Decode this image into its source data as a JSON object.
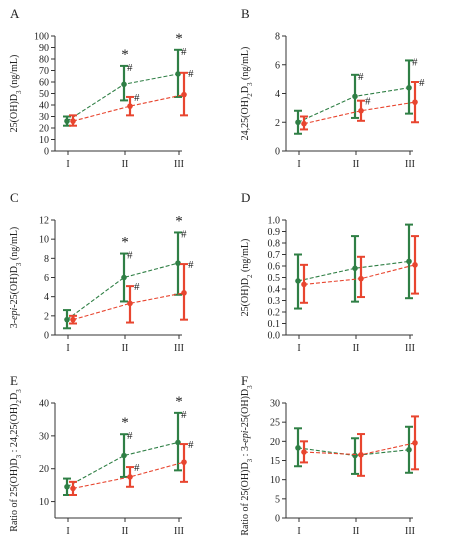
{
  "colors": {
    "green": "#2f7f45",
    "red": "#e8452f"
  },
  "chart_data": [
    {
      "type": "line",
      "panel_label": "A",
      "ylabel": "25(OH)D3 (ng/mL)",
      "ylabel_parts": [
        [
          "25(OH)D",
          "normal"
        ],
        [
          "3",
          "sub"
        ],
        [
          " (ng/mL)",
          "normal"
        ]
      ],
      "categories": [
        "I",
        "II",
        "III"
      ],
      "ylim": [
        0,
        100
      ],
      "yticks": [
        0,
        10,
        20,
        30,
        40,
        50,
        60,
        70,
        80,
        90,
        100
      ],
      "series": [
        {
          "color": "green",
          "values": [
            26,
            58,
            67
          ],
          "err_low": [
            22,
            44,
            47
          ],
          "err_high": [
            30,
            74,
            88
          ]
        },
        {
          "color": "red",
          "values": [
            26,
            39,
            49
          ],
          "err_low": [
            22,
            31,
            31
          ],
          "err_high": [
            31,
            47,
            68
          ]
        }
      ],
      "annotations": [
        {
          "x": 1,
          "y": 74,
          "star": "*",
          "hash_green": "#",
          "hash_red": "#"
        },
        {
          "x": 2,
          "y": 88,
          "star": "*",
          "hash_green": "#",
          "hash_red": "#"
        }
      ]
    },
    {
      "type": "line",
      "panel_label": "B",
      "ylabel": "24,25(OH)2D3 (ng/mL)",
      "ylabel_parts": [
        [
          "24,25(OH)",
          "normal"
        ],
        [
          "2",
          "sub"
        ],
        [
          "D",
          "normal"
        ],
        [
          "3",
          "sub"
        ],
        [
          " (ng/mL)",
          "normal"
        ]
      ],
      "categories": [
        "I",
        "II",
        "III"
      ],
      "ylim": [
        0,
        8
      ],
      "yticks": [
        0,
        2,
        4,
        6,
        8
      ],
      "series": [
        {
          "color": "green",
          "values": [
            2.0,
            3.8,
            4.4
          ],
          "err_low": [
            1.2,
            2.3,
            2.6
          ],
          "err_high": [
            2.8,
            5.3,
            6.3
          ]
        },
        {
          "color": "red",
          "values": [
            1.9,
            2.8,
            3.4
          ],
          "err_low": [
            1.5,
            2.1,
            2.0
          ],
          "err_high": [
            2.4,
            3.5,
            4.8
          ]
        }
      ],
      "annotations": [
        {
          "x": 1,
          "y": 5.3,
          "star": "",
          "hash_green": "#",
          "hash_red": "#"
        },
        {
          "x": 2,
          "y": 6.3,
          "star": "",
          "hash_green": "#",
          "hash_red": "#"
        }
      ]
    },
    {
      "type": "line",
      "panel_label": "C",
      "ylabel": "3-epi-25(OH)D3 (ng/mL)",
      "ylabel_parts": [
        [
          "3-",
          "normal"
        ],
        [
          "epi",
          "italic"
        ],
        [
          "-25(OH)D",
          "normal"
        ],
        [
          "3",
          "sub"
        ],
        [
          " (ng/mL)",
          "normal"
        ]
      ],
      "categories": [
        "I",
        "II",
        "III"
      ],
      "ylim": [
        0,
        12
      ],
      "yticks": [
        0,
        2,
        4,
        6,
        8,
        10,
        12
      ],
      "series": [
        {
          "color": "green",
          "values": [
            1.6,
            6.0,
            7.5
          ],
          "err_low": [
            0.7,
            3.5,
            4.2
          ],
          "err_high": [
            2.6,
            8.5,
            10.7
          ]
        },
        {
          "color": "red",
          "values": [
            1.6,
            3.3,
            4.4
          ],
          "err_low": [
            1.2,
            1.3,
            1.6
          ],
          "err_high": [
            2.0,
            5.1,
            7.4
          ]
        }
      ],
      "annotations": [
        {
          "x": 1,
          "y": 8.5,
          "star": "*",
          "hash_green": "#",
          "hash_red": "#"
        },
        {
          "x": 2,
          "y": 10.7,
          "star": "*",
          "hash_green": "#",
          "hash_red": "#"
        }
      ]
    },
    {
      "type": "line",
      "panel_label": "D",
      "ylabel": "25(OH)D2 (ng/mL)",
      "ylabel_parts": [
        [
          "25(OH)D",
          "normal"
        ],
        [
          "2",
          "sub"
        ],
        [
          " (ng/mL)",
          "normal"
        ]
      ],
      "categories": [
        "I",
        "II",
        "III"
      ],
      "ylim": [
        0,
        1.0
      ],
      "yticks": [
        0.0,
        0.1,
        0.2,
        0.3,
        0.4,
        0.5,
        0.6,
        0.7,
        0.8,
        0.9,
        1.0
      ],
      "ytick_decimals": 1,
      "series": [
        {
          "color": "green",
          "values": [
            0.47,
            0.58,
            0.64
          ],
          "err_low": [
            0.23,
            0.29,
            0.32
          ],
          "err_high": [
            0.7,
            0.86,
            0.96
          ]
        },
        {
          "color": "red",
          "values": [
            0.44,
            0.49,
            0.61
          ],
          "err_low": [
            0.28,
            0.33,
            0.36
          ],
          "err_high": [
            0.61,
            0.68,
            0.86
          ]
        }
      ],
      "annotations": []
    },
    {
      "type": "line",
      "panel_label": "E",
      "ylabel": "Ratio of 25(OH)D3 : 24,25(OH)2D3",
      "ylabel_parts": [
        [
          "Ratio of 25(OH)D",
          "normal"
        ],
        [
          "3",
          "sub"
        ],
        [
          " : 24,25(OH)",
          "normal"
        ],
        [
          "2",
          "sub"
        ],
        [
          "D",
          "normal"
        ],
        [
          "3",
          "sub"
        ]
      ],
      "categories": [
        "I",
        "II",
        "III"
      ],
      "ylim": [
        5,
        40
      ],
      "yticks": [
        10,
        20,
        30,
        40
      ],
      "series": [
        {
          "color": "green",
          "values": [
            14.5,
            24,
            28
          ],
          "err_low": [
            12,
            17.5,
            19.5
          ],
          "err_high": [
            17,
            30.5,
            37
          ]
        },
        {
          "color": "red",
          "values": [
            14,
            17.5,
            22
          ],
          "err_low": [
            12,
            14.5,
            16
          ],
          "err_high": [
            16,
            20.5,
            27.5
          ]
        }
      ],
      "annotations": [
        {
          "x": 1,
          "y": 30.5,
          "star": "*",
          "hash_green": "#",
          "hash_red": "#"
        },
        {
          "x": 2,
          "y": 37,
          "star": "*",
          "hash_green": "#",
          "hash_red": "#"
        }
      ]
    },
    {
      "type": "line",
      "panel_label": "F",
      "ylabel": "Ratio of 25(OH)D3 : 3-epi-25(OH)D3",
      "ylabel_parts": [
        [
          "Ratio of 25(OH)D",
          "normal"
        ],
        [
          "3",
          "sub"
        ],
        [
          " : 3-",
          "normal"
        ],
        [
          "epi",
          "italic"
        ],
        [
          "-25(OH)D",
          "normal"
        ],
        [
          "3",
          "sub"
        ]
      ],
      "categories": [
        "I",
        "II",
        "III"
      ],
      "ylim": [
        0,
        30
      ],
      "yticks": [
        0,
        5,
        10,
        15,
        20,
        25,
        30
      ],
      "series": [
        {
          "color": "green",
          "values": [
            18.3,
            16.3,
            17.8
          ],
          "err_low": [
            13.5,
            11.5,
            11.8
          ],
          "err_high": [
            23.4,
            20.8,
            23.8
          ]
        },
        {
          "color": "red",
          "values": [
            17.2,
            16.5,
            19.6
          ],
          "err_low": [
            14.5,
            11.0,
            12.7
          ],
          "err_high": [
            20.0,
            21.9,
            26.5
          ]
        }
      ],
      "annotations": []
    }
  ]
}
